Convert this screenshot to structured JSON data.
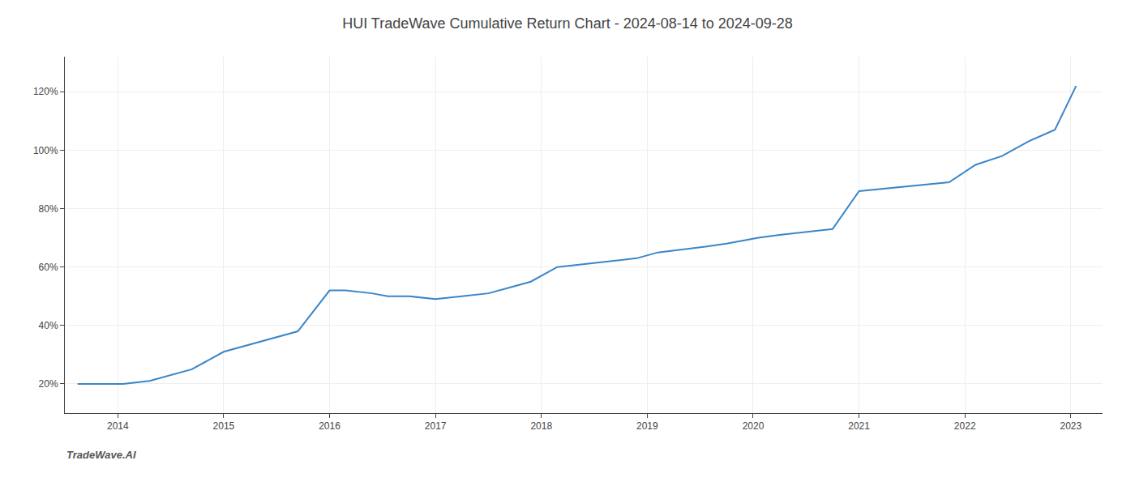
{
  "chart_data": {
    "type": "line",
    "title": "HUI TradeWave Cumulative Return Chart - 2024-08-14 to 2024-09-28",
    "annotations": [
      {
        "text": "TradeWave.AI"
      }
    ],
    "x": [
      2013.62,
      2014.05,
      2014.3,
      2014.7,
      2015.0,
      2015.4,
      2015.7,
      2016.0,
      2016.15,
      2016.4,
      2016.55,
      2016.75,
      2017.0,
      2017.25,
      2017.5,
      2017.7,
      2017.9,
      2018.15,
      2018.4,
      2018.65,
      2018.9,
      2019.1,
      2019.35,
      2019.55,
      2019.75,
      2019.9,
      2020.05,
      2020.25,
      2020.5,
      2020.75,
      2021.0,
      2021.3,
      2021.6,
      2021.85,
      2022.1,
      2022.35,
      2022.6,
      2022.85,
      2023.05
    ],
    "values": [
      20,
      20,
      21,
      25,
      31,
      35,
      38,
      52,
      52,
      51,
      50,
      50,
      49,
      50,
      51,
      53,
      55,
      60,
      61,
      62,
      63,
      65,
      66,
      67,
      68,
      69,
      70,
      71,
      72,
      73,
      86,
      87,
      88,
      89,
      95,
      98,
      103,
      107,
      122
    ],
    "color": "#3a86c8",
    "xlim": [
      2013.5,
      2023.3
    ],
    "xticks": [
      2014,
      2015,
      2016,
      2017,
      2018,
      2019,
      2020,
      2021,
      2022,
      2023
    ],
    "ylim": [
      10,
      132
    ],
    "yticks": [
      {
        "value": 20,
        "label": "20%"
      },
      {
        "value": 40,
        "label": "40%"
      },
      {
        "value": 60,
        "label": "60%"
      },
      {
        "value": 80,
        "label": "80%"
      },
      {
        "value": 100,
        "label": "100%"
      },
      {
        "value": 120,
        "label": "120%"
      }
    ],
    "grid": true
  }
}
